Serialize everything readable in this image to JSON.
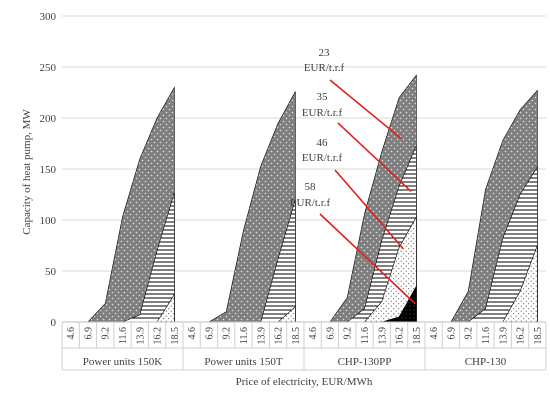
{
  "chart_data": {
    "type": "area",
    "title": "",
    "xlabel": "Price of electricity, EUR/MWh",
    "ylabel": "Capacity of heat pump, MW",
    "ylim": [
      0,
      300
    ],
    "yticks": [
      0,
      50,
      100,
      150,
      200,
      250,
      300
    ],
    "grid": true,
    "x_ticks": [
      "4.6",
      "6.9",
      "9.2",
      "11.6",
      "13.9",
      "16.2",
      "18.5"
    ],
    "groups": [
      {
        "name": "Power units 150K",
        "series": [
          {
            "name": "23 EUR/t.r.f",
            "values": [
              0,
              0,
              18,
              103,
              160,
              200,
              230
            ]
          },
          {
            "name": "35 EUR/t.r.f",
            "values": [
              0,
              0,
              0,
              0,
              7,
              70,
              127
            ]
          },
          {
            "name": "46 EUR/t.r.f",
            "values": [
              0,
              0,
              0,
              0,
              0,
              0,
              27
            ]
          },
          {
            "name": "58 EUR/t.r.f",
            "values": [
              0,
              0,
              0,
              0,
              0,
              0,
              0
            ]
          }
        ]
      },
      {
        "name": "Power units 150T",
        "series": [
          {
            "name": "23 EUR/t.r.f",
            "values": [
              0,
              0,
              10,
              90,
              153,
              195,
              226
            ]
          },
          {
            "name": "35 EUR/t.r.f",
            "values": [
              0,
              0,
              0,
              0,
              0,
              62,
              120
            ]
          },
          {
            "name": "46 EUR/t.r.f",
            "values": [
              0,
              0,
              0,
              0,
              0,
              0,
              15
            ]
          },
          {
            "name": "58 EUR/t.r.f",
            "values": [
              0,
              0,
              0,
              0,
              0,
              0,
              0
            ]
          }
        ]
      },
      {
        "name": "CHP-130PP",
        "series": [
          {
            "name": "23 EUR/t.r.f",
            "values": [
              0,
              0,
              24,
              106,
              167,
              220,
              242
            ]
          },
          {
            "name": "35 EUR/t.r.f",
            "values": [
              0,
              0,
              0,
              13,
              80,
              133,
              173
            ]
          },
          {
            "name": "46 EUR/t.r.f",
            "values": [
              0,
              0,
              0,
              0,
              20,
              73,
              103
            ]
          },
          {
            "name": "58 EUR/t.r.f",
            "values": [
              0,
              0,
              0,
              0,
              0,
              5,
              35
            ]
          }
        ]
      },
      {
        "name": "CHP-130",
        "series": [
          {
            "name": "23 EUR/t.r.f",
            "values": [
              0,
              0,
              30,
              130,
              178,
              208,
              227
            ]
          },
          {
            "name": "35 EUR/t.r.f",
            "values": [
              0,
              0,
              0,
              13,
              82,
              125,
              152
            ]
          },
          {
            "name": "46 EUR/t.r.f",
            "values": [
              0,
              0,
              0,
              0,
              0,
              30,
              75
            ]
          },
          {
            "name": "58 EUR/t.r.f",
            "values": [
              0,
              0,
              0,
              0,
              0,
              0,
              0
            ]
          }
        ]
      }
    ],
    "annotations": [
      {
        "line1": "23",
        "line2": "EUR/t.r.f",
        "pattern": "dots-on-gray"
      },
      {
        "line1": "35",
        "line2": "EUR/t.r.f",
        "pattern": "horizontal-lines"
      },
      {
        "line1": "46",
        "line2": "EUR/t.r.f",
        "pattern": "fine-dots"
      },
      {
        "line1": "58",
        "line2": "EUR/t.r.f",
        "pattern": "solid-black"
      }
    ],
    "arrow_color": "#e02020"
  }
}
